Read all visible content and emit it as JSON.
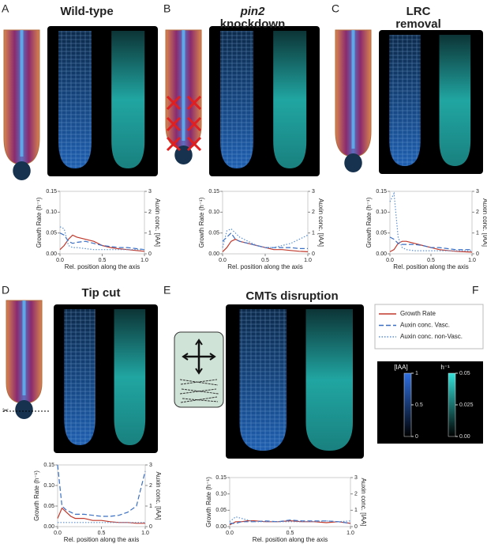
{
  "panels": [
    {
      "letter": "A",
      "title": [
        "Wild-type"
      ]
    },
    {
      "letter": "B",
      "title": [
        "pin2",
        "knockdown"
      ]
    },
    {
      "letter": "C",
      "title": [
        "LRC",
        "removal"
      ]
    },
    {
      "letter": "D",
      "title": [
        "Tip cut"
      ]
    },
    {
      "letter": "E",
      "title": [
        "CMTs disruption"
      ]
    },
    {
      "letter": "F"
    }
  ],
  "chart_data": [
    {
      "type": "line",
      "ylabel": "Growth Rate (h⁻¹)",
      "y2label": "Auxin conc. [IAA]",
      "xlabel": "Rel. position along the axis",
      "x": [
        0,
        0.05,
        0.1,
        0.15,
        0.2,
        0.3,
        0.4,
        0.5,
        0.6,
        0.7,
        0.8,
        0.9,
        1.0
      ],
      "xlim": [
        0,
        1
      ],
      "xticks": [
        {
          "value": 0,
          "label": "0.0"
        },
        {
          "value": 0.5,
          "label": "0.5"
        },
        {
          "value": 1,
          "label": "1.0"
        }
      ],
      "ylim": [
        0,
        0.15
      ],
      "yticks": [
        {
          "value": 0,
          "label": "0.00"
        },
        {
          "value": 0.05,
          "label": "0.05"
        },
        {
          "value": 0.1,
          "label": "0.10"
        },
        0.15
      ],
      "y2lim": [
        0,
        3
      ],
      "y2ticks": [
        0,
        1,
        2,
        3
      ],
      "series": [
        {
          "name": "Growth Rate",
          "color": "#c0392b",
          "dash": "solid",
          "values": [
            0.01,
            0.02,
            0.035,
            0.045,
            0.04,
            0.035,
            0.03,
            0.02,
            0.015,
            0.012,
            0.01,
            0.008,
            0.006
          ]
        },
        {
          "name": "Auxin conc. Vasc.",
          "color": "#3a6fc4",
          "dash": "dashed",
          "axis": "y2",
          "values": [
            1.0,
            0.9,
            0.6,
            0.5,
            0.55,
            0.6,
            0.5,
            0.4,
            0.35,
            0.3,
            0.3,
            0.25,
            0.2
          ]
        },
        {
          "name": "Auxin conc. non-Vasc.",
          "color": "#5b8fd5",
          "dash": "dotted",
          "axis": "y2",
          "values": [
            1.3,
            1.2,
            0.4,
            0.3,
            0.3,
            0.25,
            0.2,
            0.2,
            0.2,
            0.2,
            0.2,
            0.2,
            0.2
          ]
        }
      ]
    },
    {
      "type": "line",
      "ylabel": "Growth Rate (h⁻¹)",
      "y2label": "Auxin conc. [IAA]",
      "xlabel": "Rel. position along the axis",
      "x": [
        0,
        0.05,
        0.1,
        0.15,
        0.2,
        0.3,
        0.4,
        0.5,
        0.6,
        0.7,
        0.8,
        0.9,
        1.0
      ],
      "xlim": [
        0,
        1
      ],
      "xticks": [
        {
          "value": 0,
          "label": "0.0"
        },
        {
          "value": 0.5,
          "label": "0.5"
        },
        {
          "value": 1,
          "label": "1.0"
        }
      ],
      "ylim": [
        0,
        0.15
      ],
      "yticks": [
        {
          "value": 0,
          "label": "0.00"
        },
        {
          "value": 0.05,
          "label": "0.05"
        },
        {
          "value": 0.1,
          "label": "0.10"
        },
        0.15
      ],
      "y2lim": [
        0,
        3
      ],
      "y2ticks": [
        0,
        1,
        2,
        3
      ],
      "series": [
        {
          "name": "Growth Rate",
          "color": "#c0392b",
          "dash": "solid",
          "values": [
            0.005,
            0.015,
            0.03,
            0.035,
            0.03,
            0.025,
            0.02,
            0.015,
            0.01,
            0.01,
            0.008,
            0.006,
            0.005
          ]
        },
        {
          "name": "Auxin conc. Vasc.",
          "color": "#3a6fc4",
          "dash": "dashed",
          "axis": "y2",
          "values": [
            0.6,
            0.8,
            1.0,
            0.7,
            0.6,
            0.5,
            0.4,
            0.3,
            0.3,
            0.3,
            0.3,
            0.25,
            0.25
          ]
        },
        {
          "name": "Auxin conc. non-Vasc.",
          "color": "#5b8fd5",
          "dash": "dotted",
          "axis": "y2",
          "values": [
            0.3,
            1.1,
            1.2,
            1.0,
            0.8,
            0.6,
            0.4,
            0.3,
            0.3,
            0.4,
            0.5,
            0.7,
            0.9
          ]
        }
      ]
    },
    {
      "type": "line",
      "ylabel": "Growth Rate (h⁻¹)",
      "y2label": "Auxin conc. [IAA]",
      "xlabel": "Rel. position along the axis",
      "x": [
        0,
        0.05,
        0.1,
        0.15,
        0.2,
        0.3,
        0.4,
        0.5,
        0.6,
        0.7,
        0.8,
        0.9,
        1.0
      ],
      "xlim": [
        0,
        1
      ],
      "xticks": [
        {
          "value": 0,
          "label": "0.0"
        },
        {
          "value": 0.5,
          "label": "0.5"
        },
        {
          "value": 1,
          "label": "1.0"
        }
      ],
      "ylim": [
        0,
        0.15
      ],
      "yticks": [
        {
          "value": 0,
          "label": "0.00"
        },
        {
          "value": 0.05,
          "label": "0.05"
        },
        {
          "value": 0.1,
          "label": "0.10"
        },
        0.15
      ],
      "y2lim": [
        0,
        3
      ],
      "y2ticks": [
        0,
        1,
        2,
        3
      ],
      "series": [
        {
          "name": "Growth Rate",
          "color": "#c0392b",
          "dash": "solid",
          "values": [
            0.005,
            0.01,
            0.025,
            0.03,
            0.03,
            0.025,
            0.02,
            0.015,
            0.01,
            0.008,
            0.006,
            0.005,
            0.004
          ]
        },
        {
          "name": "Auxin conc. Vasc.",
          "color": "#3a6fc4",
          "dash": "dashed",
          "axis": "y2",
          "values": [
            0.8,
            0.7,
            0.5,
            0.45,
            0.45,
            0.45,
            0.4,
            0.3,
            0.3,
            0.25,
            0.2,
            0.2,
            0.2
          ]
        },
        {
          "name": "Auxin conc. non-Vasc.",
          "color": "#5b8fd5",
          "dash": "dotted",
          "axis": "y2",
          "values": [
            2.5,
            2.9,
            0.8,
            0.3,
            0.2,
            0.15,
            0.15,
            0.15,
            0.15,
            0.15,
            0.15,
            0.15,
            0.15
          ]
        }
      ]
    },
    {
      "type": "line",
      "ylabel": "Growth Rate (h⁻¹)",
      "y2label": "Auxin conc. [IAA]",
      "xlabel": "Rel. position along the axis",
      "x": [
        0,
        0.05,
        0.1,
        0.15,
        0.2,
        0.3,
        0.4,
        0.5,
        0.6,
        0.7,
        0.8,
        0.9,
        1.0
      ],
      "xlim": [
        0,
        1
      ],
      "xticks": [
        {
          "value": 0,
          "label": "0.0"
        },
        {
          "value": 0.5,
          "label": "0.5"
        },
        {
          "value": 1,
          "label": "1.0"
        }
      ],
      "ylim": [
        0,
        0.15
      ],
      "yticks": [
        {
          "value": 0,
          "label": "0.00"
        },
        {
          "value": 0.05,
          "label": "0.05"
        },
        {
          "value": 0.1,
          "label": "0.10"
        },
        0.15
      ],
      "y2lim": [
        0,
        3
      ],
      "y2ticks": [
        0,
        1,
        2,
        3
      ],
      "series": [
        {
          "name": "Growth Rate",
          "color": "#c0392b",
          "dash": "solid",
          "values": [
            0.02,
            0.045,
            0.035,
            0.025,
            0.02,
            0.02,
            0.015,
            0.015,
            0.012,
            0.01,
            0.01,
            0.008,
            0.008
          ]
        },
        {
          "name": "Auxin conc. Vasc.",
          "color": "#3a6fc4",
          "dash": "dashed",
          "axis": "y2",
          "values": [
            3.0,
            1.0,
            0.8,
            0.7,
            0.6,
            0.6,
            0.55,
            0.5,
            0.5,
            0.55,
            0.7,
            1.0,
            2.7
          ]
        },
        {
          "name": "Auxin conc. non-Vasc.",
          "color": "#5b8fd5",
          "dash": "dotted",
          "axis": "y2",
          "values": [
            0.2,
            0.2,
            0.2,
            0.2,
            0.2,
            0.2,
            0.2,
            0.2,
            0.2,
            0.2,
            0.2,
            0.2,
            0.2
          ]
        }
      ]
    },
    {
      "type": "line",
      "ylabel": "Growth Rate (h⁻¹)",
      "y2label": "Auxin conc. [IAA]",
      "xlabel": "Rel. position along the axis",
      "x": [
        0,
        0.05,
        0.1,
        0.15,
        0.2,
        0.3,
        0.4,
        0.5,
        0.6,
        0.7,
        0.8,
        0.9,
        1.0
      ],
      "xlim": [
        0,
        1
      ],
      "xticks": [
        {
          "value": 0,
          "label": "0.0"
        },
        {
          "value": 0.5,
          "label": "0.5"
        },
        {
          "value": 1,
          "label": "1.0"
        }
      ],
      "ylim": [
        0,
        0.15
      ],
      "yticks": [
        {
          "value": 0,
          "label": "0.00"
        },
        {
          "value": 0.05,
          "label": "0.05"
        },
        {
          "value": 0.1,
          "label": "0.10"
        },
        0.15
      ],
      "y2lim": [
        0,
        3
      ],
      "y2ticks": [
        0,
        1,
        2,
        3
      ],
      "series": [
        {
          "name": "Growth Rate",
          "color": "#c0392b",
          "dash": "solid",
          "values": [
            0.005,
            0.015,
            0.015,
            0.018,
            0.018,
            0.015,
            0.015,
            0.018,
            0.015,
            0.015,
            0.012,
            0.015,
            0.01
          ]
        },
        {
          "name": "Auxin conc. Vasc.",
          "color": "#3a6fc4",
          "dash": "dashed",
          "axis": "y2",
          "values": [
            0.2,
            0.2,
            0.3,
            0.3,
            0.3,
            0.35,
            0.3,
            0.4,
            0.35,
            0.35,
            0.35,
            0.3,
            0.2
          ]
        },
        {
          "name": "Auxin conc. non-Vasc.",
          "color": "#5b8fd5",
          "dash": "dotted",
          "axis": "y2",
          "values": [
            0.3,
            0.6,
            0.5,
            0.4,
            0.3,
            0.3,
            0.3,
            0.3,
            0.3,
            0.3,
            0.35,
            0.3,
            0.35
          ]
        }
      ]
    }
  ],
  "colorbars": [
    {
      "title": "[IAA]",
      "lim": [
        0,
        1
      ],
      "ticks": [
        1,
        0.5,
        0
      ],
      "color": "#2f6fe0"
    },
    {
      "title": "h⁻¹",
      "lim": [
        0,
        0.05
      ],
      "ticks": [
        0.05,
        0.025,
        {
          "value": 0,
          "label": "0.00"
        }
      ],
      "color": "#35e0d8"
    }
  ]
}
